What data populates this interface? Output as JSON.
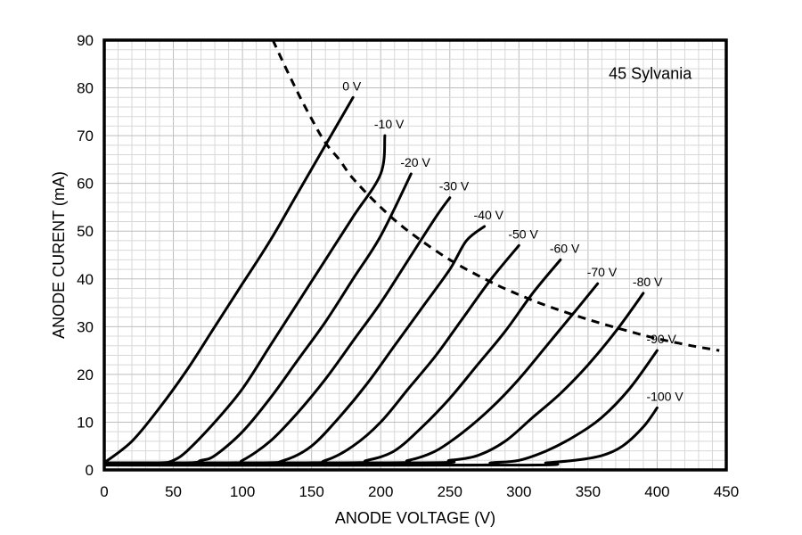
{
  "chart_data": {
    "type": "line",
    "annotation": "45 Sylvania",
    "xlabel": "ANODE VOLTAGE (V)",
    "ylabel": "ANODE CURENT (mA)",
    "xlim": [
      0,
      450
    ],
    "ylim": [
      0,
      90
    ],
    "x_ticks": [
      0,
      50,
      100,
      150,
      200,
      250,
      300,
      350,
      400,
      450
    ],
    "y_ticks": [
      0,
      10,
      20,
      30,
      40,
      50,
      60,
      70,
      80,
      90
    ],
    "grid": true,
    "series": [
      {
        "name": "0 V",
        "points": [
          [
            0,
            1.5
          ],
          [
            20,
            6
          ],
          [
            40,
            13
          ],
          [
            60,
            21
          ],
          [
            80,
            30
          ],
          [
            100,
            39
          ],
          [
            120,
            48
          ],
          [
            140,
            58
          ],
          [
            160,
            68
          ],
          [
            180,
            78
          ]
        ]
      },
      {
        "name": "-10 V",
        "points": [
          [
            0,
            1.5
          ],
          [
            40,
            1.5
          ],
          [
            50,
            2
          ],
          [
            60,
            4
          ],
          [
            80,
            10
          ],
          [
            100,
            17
          ],
          [
            120,
            26
          ],
          [
            140,
            35
          ],
          [
            160,
            44
          ],
          [
            180,
            53
          ],
          [
            200,
            62
          ],
          [
            203,
            70
          ]
        ]
      },
      {
        "name": "-20 V",
        "points": [
          [
            0,
            1.5
          ],
          [
            60,
            1.5
          ],
          [
            70,
            2
          ],
          [
            80,
            3
          ],
          [
            100,
            8
          ],
          [
            120,
            15
          ],
          [
            140,
            23
          ],
          [
            160,
            31
          ],
          [
            180,
            40
          ],
          [
            200,
            49
          ],
          [
            222,
            62
          ]
        ]
      },
      {
        "name": "-30 V",
        "points": [
          [
            0,
            1.5
          ],
          [
            90,
            1.5
          ],
          [
            100,
            2
          ],
          [
            120,
            6
          ],
          [
            140,
            12
          ],
          [
            160,
            19
          ],
          [
            180,
            27
          ],
          [
            200,
            35
          ],
          [
            220,
            44
          ],
          [
            240,
            53
          ],
          [
            250,
            57
          ]
        ]
      },
      {
        "name": "-40 V",
        "points": [
          [
            0,
            1.5
          ],
          [
            110,
            1.5
          ],
          [
            130,
            2
          ],
          [
            150,
            5
          ],
          [
            170,
            11
          ],
          [
            190,
            18
          ],
          [
            210,
            26
          ],
          [
            230,
            34
          ],
          [
            250,
            42
          ],
          [
            262,
            48
          ],
          [
            275,
            51
          ]
        ]
      },
      {
        "name": "-50 V",
        "points": [
          [
            0,
            1.5
          ],
          [
            140,
            1.5
          ],
          [
            160,
            2
          ],
          [
            180,
            5
          ],
          [
            200,
            10
          ],
          [
            220,
            17
          ],
          [
            240,
            24
          ],
          [
            260,
            32
          ],
          [
            280,
            40
          ],
          [
            300,
            47
          ]
        ]
      },
      {
        "name": "-60 V",
        "points": [
          [
            0,
            1.5
          ],
          [
            170,
            1.5
          ],
          [
            190,
            2
          ],
          [
            210,
            4
          ],
          [
            230,
            9
          ],
          [
            250,
            15
          ],
          [
            270,
            22
          ],
          [
            290,
            29
          ],
          [
            310,
            37
          ],
          [
            330,
            44
          ]
        ]
      },
      {
        "name": "-70 V",
        "points": [
          [
            0,
            1.5
          ],
          [
            200,
            1.5
          ],
          [
            220,
            2
          ],
          [
            240,
            4
          ],
          [
            260,
            8
          ],
          [
            280,
            13
          ],
          [
            300,
            19
          ],
          [
            320,
            26
          ],
          [
            340,
            33
          ],
          [
            357,
            39
          ]
        ]
      },
      {
        "name": "-80 V",
        "points": [
          [
            0,
            1.5
          ],
          [
            230,
            1.5
          ],
          [
            250,
            2
          ],
          [
            270,
            3
          ],
          [
            290,
            6
          ],
          [
            310,
            11
          ],
          [
            330,
            16
          ],
          [
            350,
            22
          ],
          [
            370,
            29
          ],
          [
            390,
            37
          ]
        ]
      },
      {
        "name": "-90 V",
        "points": [
          [
            0,
            1
          ],
          [
            260,
            1
          ],
          [
            280,
            1.5
          ],
          [
            300,
            2
          ],
          [
            320,
            4
          ],
          [
            340,
            7
          ],
          [
            360,
            11
          ],
          [
            380,
            17
          ],
          [
            400,
            25
          ]
        ]
      },
      {
        "name": "-100 V",
        "points": [
          [
            0,
            1
          ],
          [
            300,
            1
          ],
          [
            320,
            1.5
          ],
          [
            340,
            2
          ],
          [
            360,
            3
          ],
          [
            375,
            5
          ],
          [
            390,
            9
          ],
          [
            400,
            13
          ]
        ]
      }
    ],
    "dissipation_curve": {
      "points": [
        [
          122,
          90
        ],
        [
          130,
          85
        ],
        [
          140,
          79
        ],
        [
          150,
          73.5
        ],
        [
          160,
          68.5
        ],
        [
          170,
          65
        ],
        [
          180,
          61
        ],
        [
          200,
          55
        ],
        [
          220,
          50
        ],
        [
          250,
          44
        ],
        [
          280,
          39.3
        ],
        [
          300,
          36.7
        ],
        [
          320,
          34.4
        ],
        [
          350,
          31.5
        ],
        [
          380,
          29
        ],
        [
          400,
          27.5
        ],
        [
          425,
          26
        ],
        [
          445,
          25
        ]
      ]
    }
  }
}
